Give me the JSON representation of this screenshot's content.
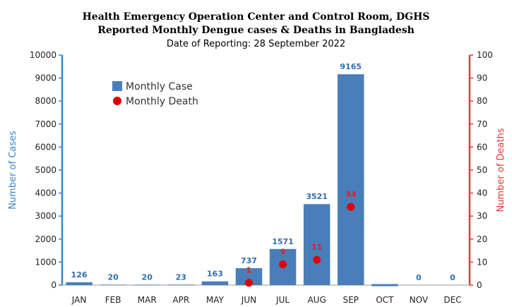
{
  "chart_data": {
    "type": "bar",
    "title": "Health Emergency Operation Center and Control Room, DGHS",
    "subtitle": "Reported Monthly Dengue cases & Deaths in Bangladesh",
    "date_line": "Date of Reporting: 28 September 2022",
    "categories": [
      "JAN",
      "FEB",
      "MAR",
      "APR",
      "MAY",
      "JUN",
      "JUL",
      "AUG",
      "SEP",
      "OCT",
      "NOV",
      "DEC"
    ],
    "series": [
      {
        "name": "Monthly Case",
        "axis": "left",
        "type": "bar",
        "color": "#4a7ebb",
        "values": [
          126,
          20,
          20,
          23,
          163,
          737,
          1571,
          3521,
          9165,
          null,
          0,
          0
        ],
        "labels": [
          "126",
          "20",
          "20",
          "23",
          "163",
          "737",
          "1571",
          "3521",
          "9165",
          "",
          "0",
          "0"
        ]
      },
      {
        "name": "Monthly Death",
        "axis": "right",
        "type": "scatter",
        "color": "#e00000",
        "values": [
          null,
          null,
          null,
          null,
          null,
          1,
          9,
          11,
          34,
          null,
          null,
          null
        ],
        "labels": [
          "",
          "",
          "",
          "",
          "",
          "1",
          "9",
          "11",
          "34",
          "",
          "",
          ""
        ]
      }
    ],
    "ylabel": "Number of Cases",
    "ylabel_right": "Number of Deaths",
    "ylim": [
      0,
      10000
    ],
    "ylim_right": [
      0,
      100
    ],
    "yticks": [
      0,
      1000,
      2000,
      3000,
      4000,
      5000,
      6000,
      7000,
      8000,
      9000,
      10000
    ],
    "yticks_right": [
      0,
      10,
      20,
      30,
      40,
      50,
      60,
      70,
      80,
      90,
      100
    ],
    "legend": "top-left",
    "grid": false
  }
}
